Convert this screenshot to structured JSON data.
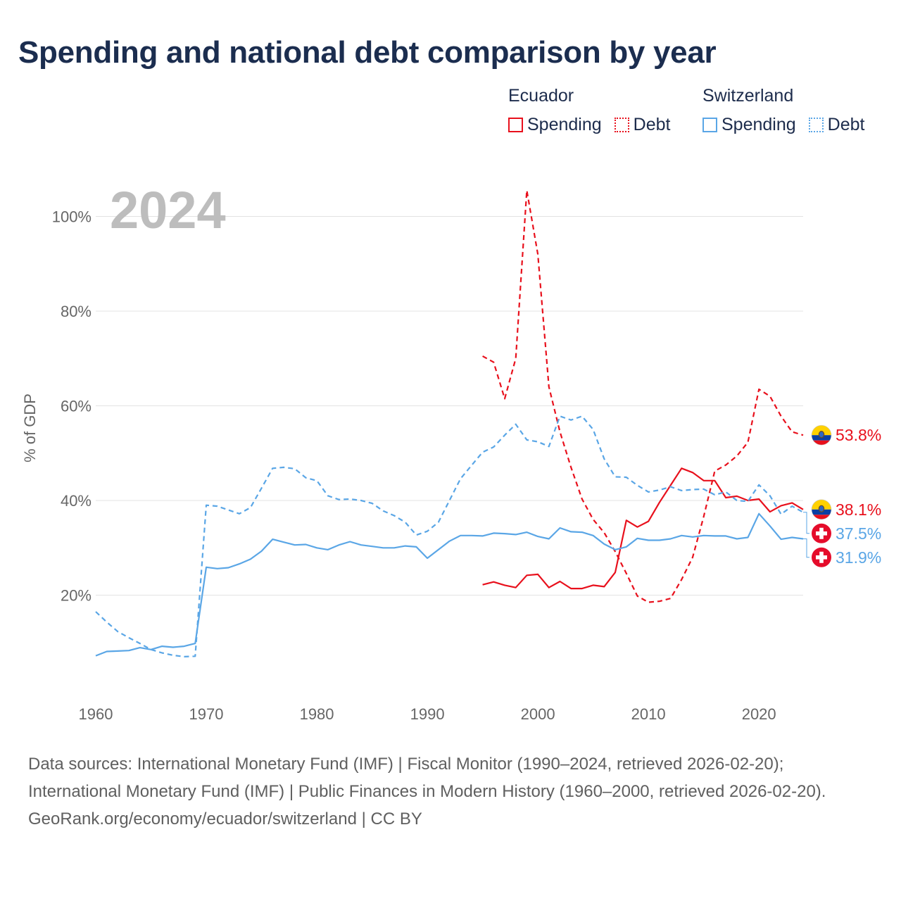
{
  "title": "Spending and national debt comparison by year",
  "legend": [
    {
      "country": "Ecuador",
      "color": "#e8101c",
      "items": [
        {
          "label": "Spending",
          "style": "solid"
        },
        {
          "label": "Debt",
          "style": "dotted"
        }
      ]
    },
    {
      "country": "Switzerland",
      "color": "#5aa6e6",
      "items": [
        {
          "label": "Spending",
          "style": "solid"
        },
        {
          "label": "Debt",
          "style": "dotted"
        }
      ]
    }
  ],
  "footer": {
    "sources": "Data sources: International Monetary Fund (IMF) | Fiscal Monitor (1990–2024, retrieved 2026-02-20); International Monetary Fund (IMF) | Public Finances in Modern History (1960–2000, retrieved 2026-02-20).",
    "credit": "GeoRank.org/economy/ecuador/switzerland | CC BY"
  },
  "chart_data": {
    "type": "line",
    "year_label": "2024",
    "ylabel": "% of GDP",
    "xlabel": "",
    "xlim": [
      1960,
      2024
    ],
    "ylim": [
      0,
      110
    ],
    "x_ticks": [
      1960,
      1970,
      1980,
      1990,
      2000,
      2010,
      2020
    ],
    "y_ticks": [
      {
        "value": 20,
        "label": "20%"
      },
      {
        "value": 40,
        "label": "40%"
      },
      {
        "value": 60,
        "label": "60%"
      },
      {
        "value": 80,
        "label": "80%"
      },
      {
        "value": 100,
        "label": "100%"
      }
    ],
    "grid": true,
    "series": [
      {
        "name": "Ecuador Spending",
        "country": "Ecuador",
        "color": "#e8101c",
        "dash": "solid",
        "label": "38.1%",
        "flag": "ecuador",
        "x": [
          1995,
          1996,
          1997,
          1998,
          1999,
          2000,
          2001,
          2002,
          2003,
          2004,
          2005,
          2006,
          2007,
          2008,
          2009,
          2010,
          2011,
          2012,
          2013,
          2014,
          2015,
          2016,
          2017,
          2018,
          2019,
          2020,
          2021,
          2022,
          2023,
          2024
        ],
        "y": [
          22.2,
          22.8,
          22.1,
          21.6,
          24.2,
          24.4,
          21.6,
          22.9,
          21.4,
          21.4,
          22.1,
          21.8,
          24.8,
          35.8,
          34.4,
          35.6,
          39.6,
          43.2,
          46.8,
          45.9,
          44.2,
          44.2,
          40.6,
          40.9,
          40.0,
          40.3,
          37.6,
          38.9,
          39.5,
          38.1
        ]
      },
      {
        "name": "Ecuador Debt",
        "country": "Ecuador",
        "color": "#e8101c",
        "dash": "dashed",
        "label": "53.8%",
        "flag": "ecuador",
        "x": [
          1995,
          1996,
          1997,
          1998,
          1999,
          2000,
          2001,
          2002,
          2003,
          2004,
          2005,
          2006,
          2007,
          2008,
          2009,
          2010,
          2011,
          2012,
          2013,
          2014,
          2015,
          2016,
          2017,
          2018,
          2019,
          2020,
          2021,
          2022,
          2023,
          2024
        ],
        "y": [
          70.5,
          69.2,
          61.5,
          70.0,
          105.5,
          92.0,
          64.0,
          54.5,
          47.0,
          40.3,
          36.0,
          33.2,
          29.2,
          24.6,
          19.8,
          18.5,
          18.7,
          19.3,
          23.3,
          28.0,
          36.6,
          46.2,
          47.5,
          49.4,
          52.3,
          63.5,
          62.0,
          57.8,
          54.5,
          53.8
        ]
      },
      {
        "name": "Switzerland Spending",
        "country": "Switzerland",
        "color": "#5aa6e6",
        "dash": "solid",
        "label": "31.9%",
        "flag": "switzerland",
        "x": [
          1960,
          1961,
          1962,
          1963,
          1964,
          1965,
          1966,
          1967,
          1968,
          1969,
          1970,
          1971,
          1972,
          1973,
          1974,
          1975,
          1976,
          1977,
          1978,
          1979,
          1980,
          1981,
          1982,
          1983,
          1984,
          1985,
          1986,
          1987,
          1988,
          1989,
          1990,
          1991,
          1992,
          1993,
          1994,
          1995,
          1996,
          1997,
          1998,
          1999,
          2000,
          2001,
          2002,
          2003,
          2004,
          2005,
          2006,
          2007,
          2008,
          2009,
          2010,
          2011,
          2012,
          2013,
          2014,
          2015,
          2016,
          2017,
          2018,
          2019,
          2020,
          2021,
          2022,
          2023,
          2024
        ],
        "y": [
          7.2,
          8.1,
          8.2,
          8.3,
          8.9,
          8.5,
          9.2,
          9.0,
          9.2,
          9.8,
          25.9,
          25.6,
          25.8,
          26.6,
          27.6,
          29.3,
          31.8,
          31.2,
          30.6,
          30.7,
          30.0,
          29.6,
          30.6,
          31.3,
          30.6,
          30.3,
          30.0,
          30.0,
          30.4,
          30.2,
          27.8,
          29.6,
          31.4,
          32.6,
          32.6,
          32.5,
          33.1,
          33.0,
          32.8,
          33.3,
          32.4,
          31.9,
          34.2,
          33.4,
          33.3,
          32.6,
          30.8,
          29.6,
          30.2,
          32.0,
          31.6,
          31.6,
          31.9,
          32.6,
          32.3,
          32.6,
          32.5,
          32.5,
          31.9,
          32.2,
          37.2,
          34.6,
          31.8,
          32.2,
          31.9
        ]
      },
      {
        "name": "Switzerland Debt",
        "country": "Switzerland",
        "color": "#5aa6e6",
        "dash": "dashed",
        "label": "37.5%",
        "flag": "switzerland",
        "x": [
          1960,
          1961,
          1962,
          1963,
          1964,
          1965,
          1966,
          1967,
          1968,
          1969,
          1970,
          1971,
          1972,
          1973,
          1974,
          1975,
          1976,
          1977,
          1978,
          1979,
          1980,
          1981,
          1982,
          1983,
          1984,
          1985,
          1986,
          1987,
          1988,
          1989,
          1990,
          1991,
          1992,
          1993,
          1994,
          1995,
          1996,
          1997,
          1998,
          1999,
          2000,
          2001,
          2002,
          2003,
          2004,
          2005,
          2006,
          2007,
          2008,
          2009,
          2010,
          2011,
          2012,
          2013,
          2014,
          2015,
          2016,
          2017,
          2018,
          2019,
          2020,
          2021,
          2022,
          2023,
          2024
        ],
        "y": [
          16.5,
          14.3,
          12.3,
          11.0,
          9.8,
          8.5,
          7.8,
          7.3,
          7.0,
          7.1,
          39.0,
          38.8,
          38.0,
          37.2,
          38.5,
          42.6,
          46.8,
          47.0,
          46.7,
          44.8,
          44.2,
          41.0,
          40.2,
          40.3,
          40.0,
          39.4,
          37.8,
          36.8,
          35.4,
          32.7,
          33.5,
          35.4,
          40.0,
          44.6,
          47.4,
          50.2,
          51.3,
          53.8,
          56.1,
          52.8,
          52.4,
          51.4,
          57.8,
          57.0,
          57.8,
          55.0,
          48.8,
          45.0,
          44.9,
          43.2,
          41.8,
          42.2,
          42.9,
          42.1,
          42.3,
          42.4,
          41.2,
          41.8,
          40.0,
          39.8,
          43.3,
          41.0,
          37.1,
          38.8,
          37.5
        ]
      }
    ]
  }
}
